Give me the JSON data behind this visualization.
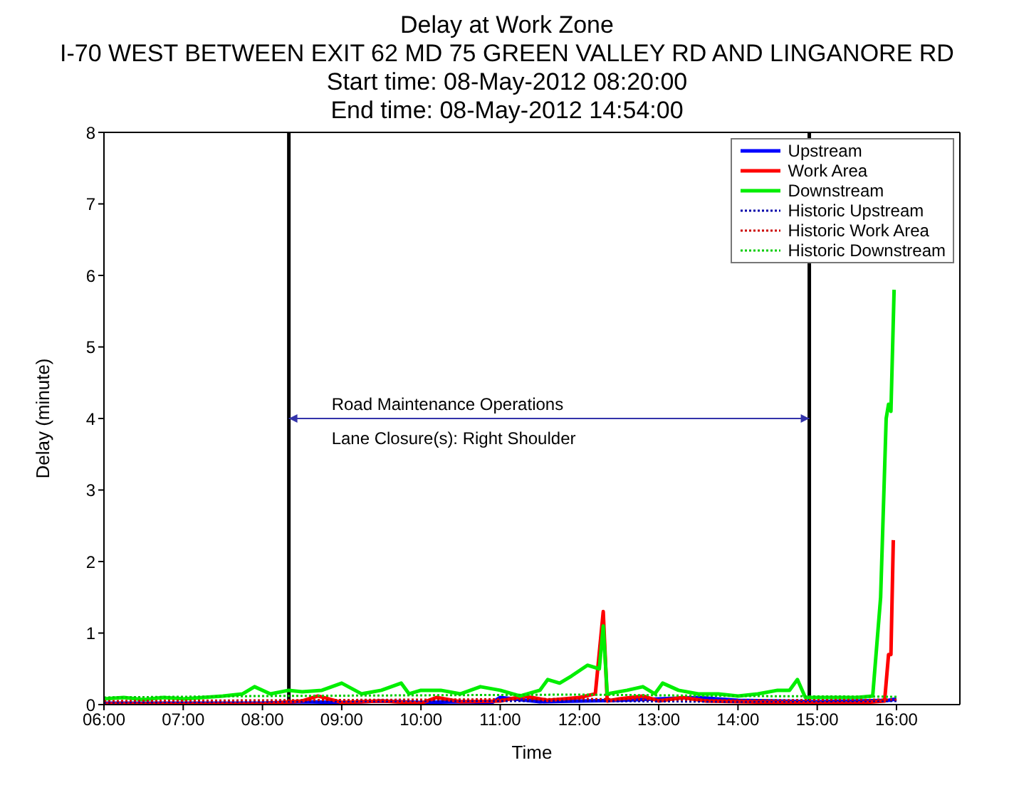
{
  "chart_data": {
    "type": "line",
    "title": "Delay at Work Zone",
    "subtitle": "I-70 WEST BETWEEN EXIT 62 MD 75 GREEN VALLEY RD AND LINGANORE RD\nStart time: 08-May-2012 08:20:00\nEnd time: 08-May-2012 14:54:00",
    "xlabel": "Time",
    "ylabel": "Delay (minute)",
    "xlim": [
      6,
      16.8
    ],
    "xticks": [
      {
        "value": 6,
        "label": "06:00"
      },
      {
        "value": 7,
        "label": "07:00"
      },
      {
        "value": 8,
        "label": "08:00"
      },
      {
        "value": 9,
        "label": "09:00"
      },
      {
        "value": 10,
        "label": "10:00"
      },
      {
        "value": 11,
        "label": "11:00"
      },
      {
        "value": 12,
        "label": "12:00"
      },
      {
        "value": 13,
        "label": "13:00"
      },
      {
        "value": 14,
        "label": "14:00"
      },
      {
        "value": 15,
        "label": "15:00"
      },
      {
        "value": 16,
        "label": "16:00"
      }
    ],
    "ylim": [
      0,
      8
    ],
    "yticks": [
      0,
      1,
      2,
      3,
      4,
      5,
      6,
      7,
      8
    ],
    "grid": false,
    "legend": "top right",
    "marker": "none",
    "series": [
      {
        "name": "Upstream",
        "color": "#0000ff",
        "line_style": "solid",
        "x": [
          6,
          7,
          8,
          8.5,
          9,
          9.5,
          10,
          10.5,
          10.9,
          11,
          11.5,
          12,
          12.5,
          13,
          13.5,
          14,
          14.5,
          15,
          15.5,
          15.9,
          16
        ],
        "values": [
          0.02,
          0.02,
          0.02,
          0.04,
          0.03,
          0.05,
          0.03,
          0.04,
          0.03,
          0.1,
          0.04,
          0.05,
          0.06,
          0.08,
          0.1,
          0.06,
          0.05,
          0.04,
          0.05,
          0.06,
          0.08
        ]
      },
      {
        "name": "Work Area",
        "color": "#ff0000",
        "line_style": "solid",
        "x": [
          6,
          7,
          8,
          8.5,
          8.7,
          9,
          9.5,
          10,
          10.2,
          10.5,
          11,
          11.3,
          11.6,
          12,
          12.2,
          12.3,
          12.35,
          12.5,
          12.8,
          13,
          13.3,
          13.6,
          14,
          14.5,
          15,
          15.5,
          15.85,
          15.9,
          15.93,
          15.96
        ],
        "values": [
          0.01,
          0.01,
          0.01,
          0.05,
          0.12,
          0.03,
          0.05,
          0.02,
          0.1,
          0.04,
          0.05,
          0.12,
          0.06,
          0.1,
          0.15,
          1.3,
          0.05,
          0.08,
          0.12,
          0.05,
          0.1,
          0.05,
          0.04,
          0.03,
          0.02,
          0.02,
          0.05,
          0.7,
          0.7,
          2.3
        ]
      },
      {
        "name": "Downstream",
        "color": "#00ee00",
        "line_style": "solid",
        "x": [
          6,
          6.25,
          6.5,
          6.75,
          7,
          7.25,
          7.5,
          7.75,
          7.9,
          8.1,
          8.333,
          8.5,
          8.75,
          9,
          9.25,
          9.5,
          9.75,
          9.85,
          10,
          10.25,
          10.5,
          10.75,
          11,
          11.25,
          11.5,
          11.6,
          11.75,
          11.9,
          12.1,
          12.25,
          12.3,
          12.35,
          12.6,
          12.8,
          12.95,
          13.05,
          13.25,
          13.5,
          13.75,
          14,
          14.25,
          14.5,
          14.65,
          14.75,
          14.85,
          15,
          15.25,
          15.5,
          15.7,
          15.8,
          15.87,
          15.9,
          15.93,
          15.97
        ],
        "values": [
          0.08,
          0.1,
          0.07,
          0.1,
          0.08,
          0.1,
          0.12,
          0.15,
          0.25,
          0.15,
          0.2,
          0.18,
          0.2,
          0.3,
          0.15,
          0.2,
          0.3,
          0.15,
          0.2,
          0.2,
          0.15,
          0.25,
          0.2,
          0.12,
          0.2,
          0.35,
          0.3,
          0.4,
          0.55,
          0.5,
          1.1,
          0.15,
          0.2,
          0.25,
          0.15,
          0.3,
          0.2,
          0.15,
          0.15,
          0.12,
          0.15,
          0.2,
          0.2,
          0.35,
          0.1,
          0.1,
          0.1,
          0.1,
          0.12,
          1.5,
          4.0,
          4.2,
          4.1,
          5.8
        ]
      },
      {
        "name": "Historic Upstream",
        "color": "#0000aa",
        "line_style": "dotted",
        "x": [
          6,
          8,
          10,
          12,
          14,
          16
        ],
        "values": [
          0.03,
          0.04,
          0.05,
          0.05,
          0.04,
          0.05
        ]
      },
      {
        "name": "Historic Work Area",
        "color": "#cc0000",
        "line_style": "dotted",
        "x": [
          6,
          8,
          10,
          12,
          14,
          16
        ],
        "values": [
          0.05,
          0.06,
          0.07,
          0.08,
          0.06,
          0.07
        ]
      },
      {
        "name": "Historic Downstream",
        "color": "#00cc00",
        "line_style": "dotted",
        "x": [
          6,
          8,
          10,
          12,
          14,
          16
        ],
        "values": [
          0.1,
          0.12,
          0.13,
          0.14,
          0.12,
          0.11
        ]
      }
    ],
    "ref_lines": [
      {
        "axis": "x",
        "value": 8.333,
        "color": "#000000"
      },
      {
        "axis": "x",
        "value": 14.9,
        "color": "#000000"
      }
    ],
    "annotations": [
      "Road Maintenance Operations",
      "Lane Closure(s): Right Shoulder"
    ]
  }
}
